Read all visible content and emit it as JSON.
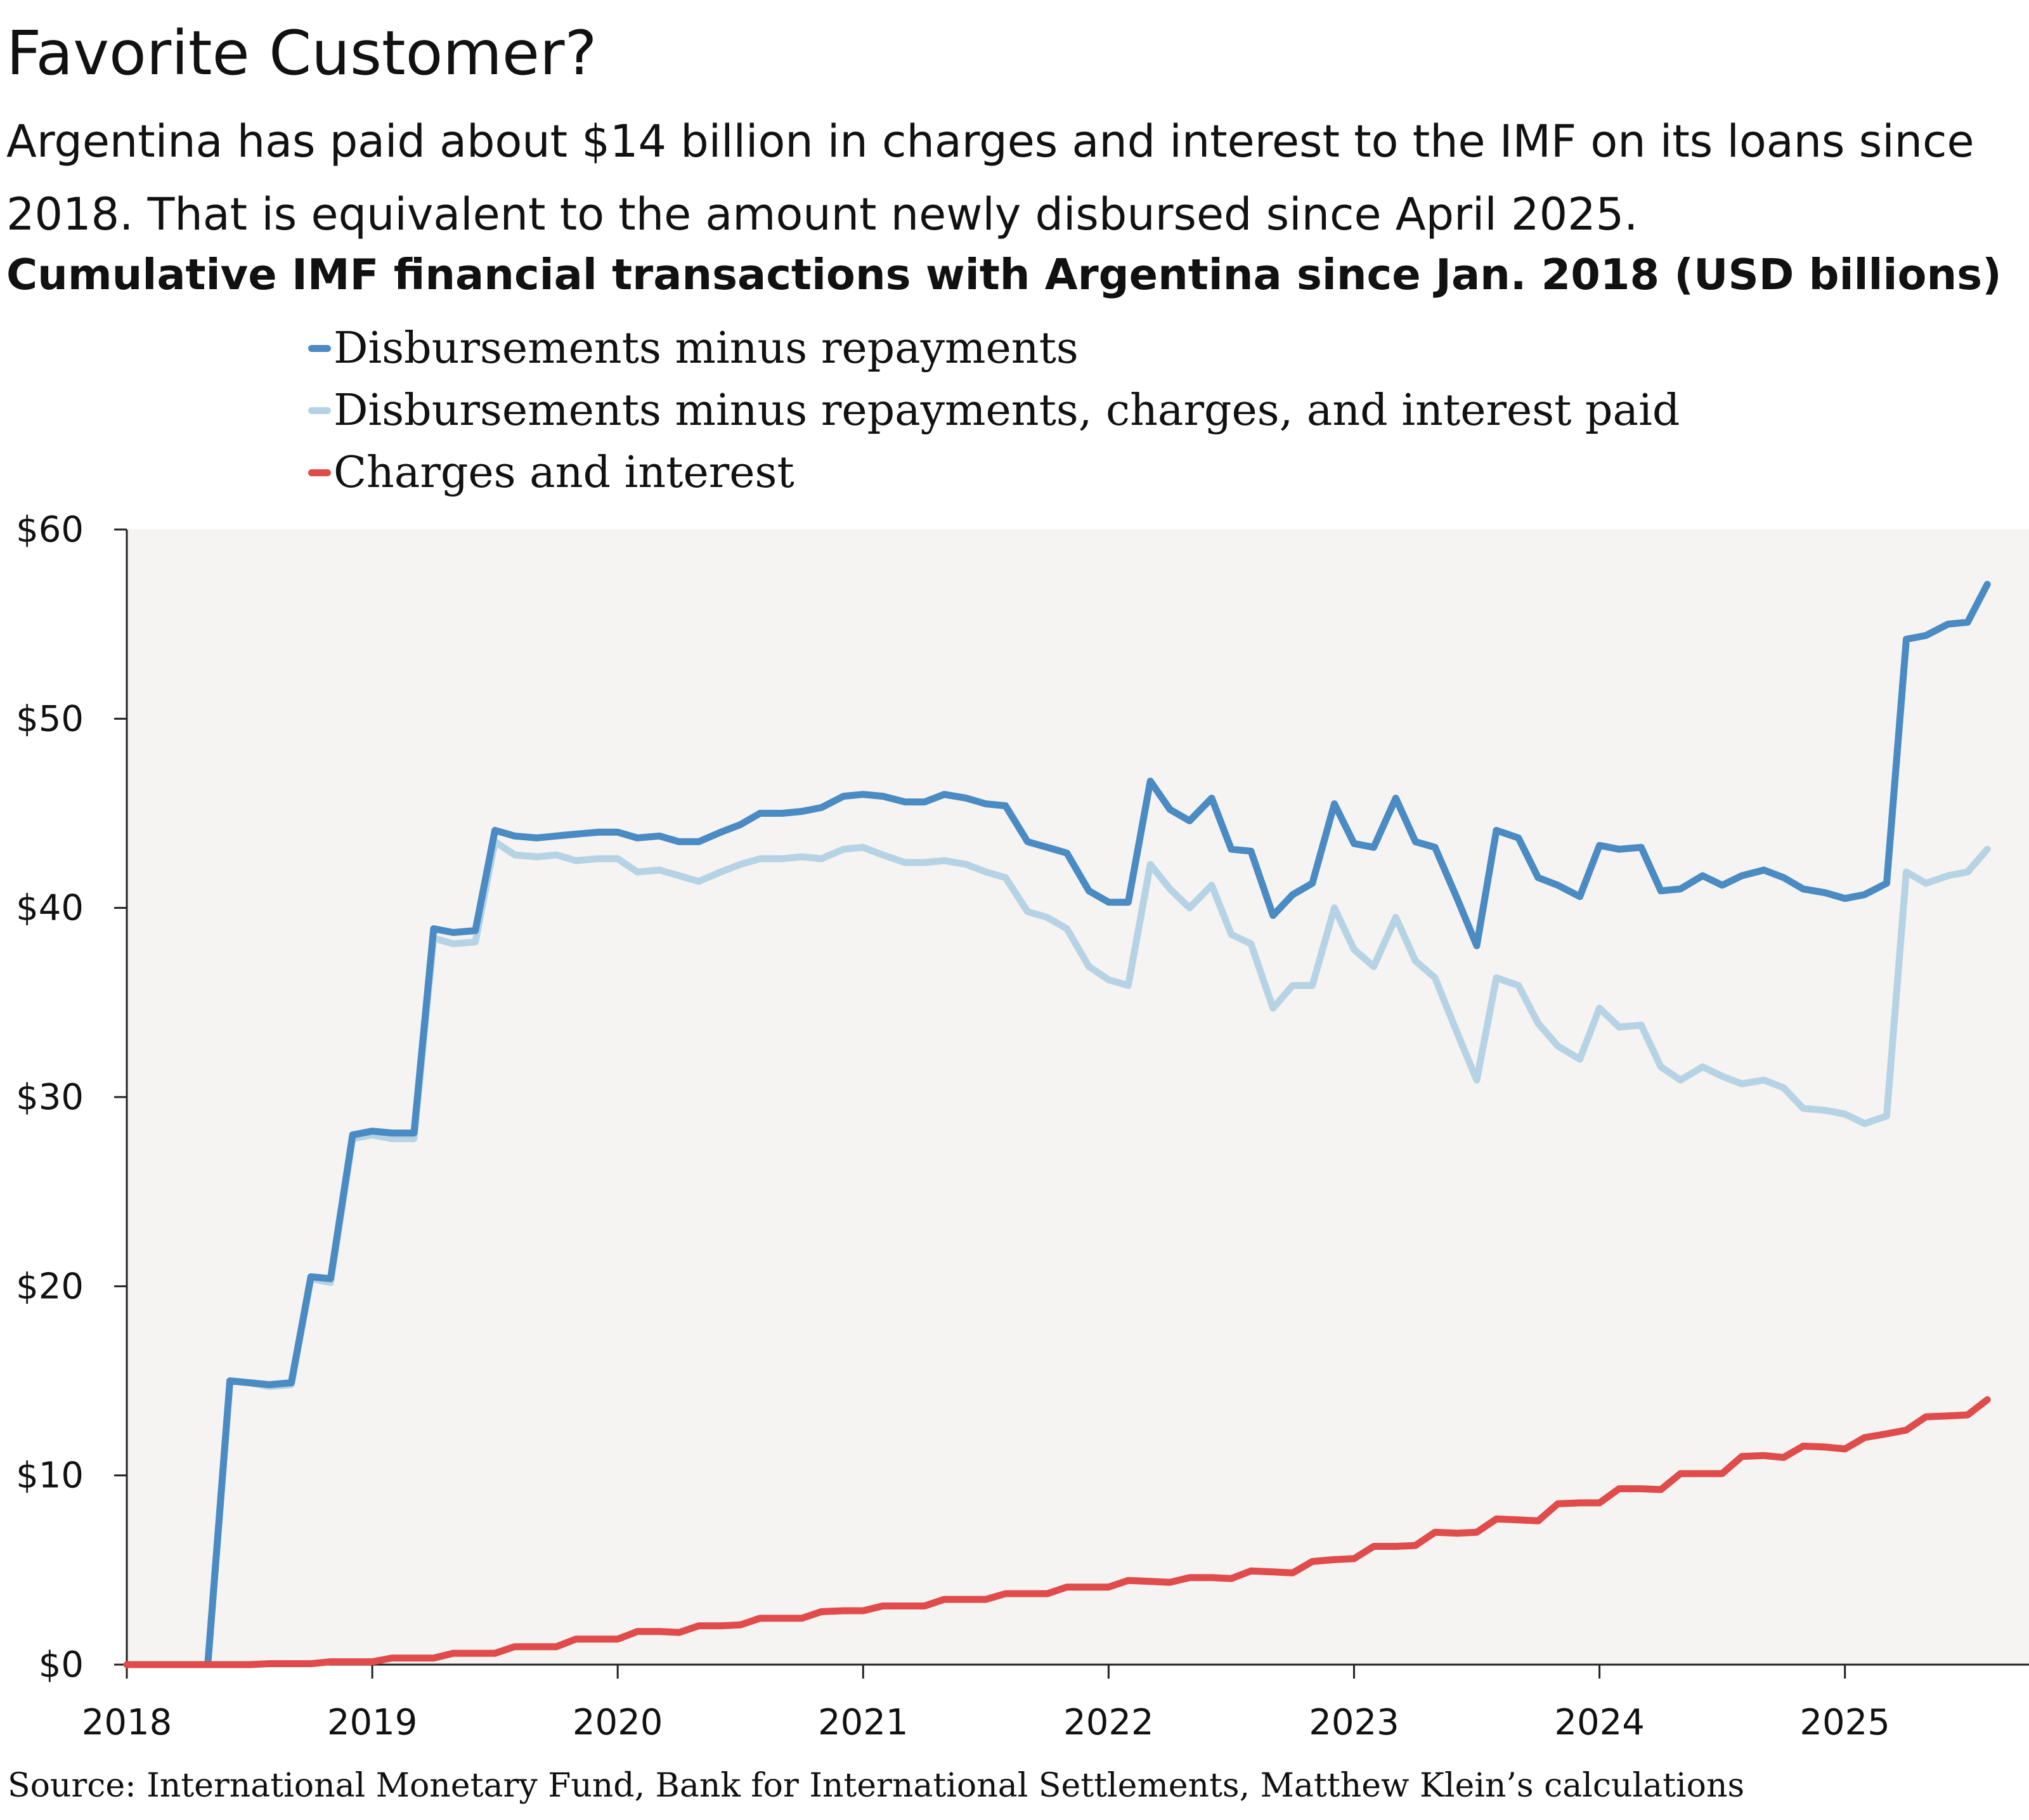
{
  "title": "Favorite Customer?",
  "subtitle": "Argentina has paid about $14 billion in charges and interest to the IMF on its loans since 2018. That is equivalent to the amount newly disbursed since April 2025.",
  "source": "Source: International Monetary Fund, Bank for International Settlements, Matthew Klein’s calculations",
  "chart_data": {
    "type": "line",
    "title": "Cumulative IMF financial transactions with Argentina since Jan. 2018 (USD billions)",
    "xlabel": "",
    "ylabel": "",
    "xlim": [
      2018,
      2025.75
    ],
    "ylim": [
      0,
      60
    ],
    "yticks": [
      0,
      10,
      20,
      30,
      40,
      50,
      60
    ],
    "ytick_labels": [
      "$0",
      "$10",
      "$20",
      "$30",
      "$40",
      "$50",
      "$60"
    ],
    "xticks": [
      2018,
      2019,
      2020,
      2021,
      2022,
      2023,
      2024,
      2025
    ],
    "xtick_labels": [
      "2018",
      "2019",
      "2020",
      "2021",
      "2022",
      "2023",
      "2024",
      "2025"
    ],
    "grid": false,
    "legend_position": "top-left",
    "background": "#f5f4f2",
    "series": [
      {
        "name": "Disbursements minus repayments",
        "color": "#4a8bc4",
        "x": [
          2018.33,
          2018.42,
          2018.5,
          2018.58,
          2018.67,
          2018.75,
          2018.83,
          2018.92,
          2019.0,
          2019.08,
          2019.17,
          2019.25,
          2019.33,
          2019.42,
          2019.5,
          2019.58,
          2019.67,
          2019.75,
          2019.83,
          2019.92,
          2020.0,
          2020.08,
          2020.17,
          2020.25,
          2020.33,
          2020.42,
          2020.5,
          2020.58,
          2020.67,
          2020.75,
          2020.83,
          2020.92,
          2021.0,
          2021.08,
          2021.17,
          2021.25,
          2021.33,
          2021.42,
          2021.5,
          2021.58,
          2021.67,
          2021.75,
          2021.83,
          2021.92,
          2022.0,
          2022.08,
          2022.17,
          2022.25,
          2022.33,
          2022.42,
          2022.5,
          2022.58,
          2022.67,
          2022.75,
          2022.83,
          2022.92,
          2023.0,
          2023.08,
          2023.17,
          2023.25,
          2023.33,
          2023.42,
          2023.5,
          2023.58,
          2023.67,
          2023.75,
          2023.83,
          2023.92,
          2024.0,
          2024.08,
          2024.17,
          2024.25,
          2024.33,
          2024.42,
          2024.5,
          2024.58,
          2024.67,
          2024.75,
          2024.83,
          2024.92,
          2025.0,
          2025.08,
          2025.17,
          2025.25,
          2025.33,
          2025.42,
          2025.5,
          2025.58
        ],
        "values": [
          0,
          15.0,
          14.9,
          14.8,
          14.9,
          20.5,
          20.4,
          28.0,
          28.2,
          28.1,
          28.1,
          38.9,
          38.7,
          38.8,
          44.1,
          43.8,
          43.7,
          43.8,
          43.9,
          44.0,
          44.0,
          43.7,
          43.8,
          43.5,
          43.5,
          44.0,
          44.4,
          45.0,
          45.0,
          45.1,
          45.3,
          45.9,
          46.0,
          45.9,
          45.6,
          45.6,
          46.0,
          45.8,
          45.5,
          45.4,
          43.5,
          43.2,
          42.9,
          40.9,
          40.3,
          40.3,
          46.7,
          45.2,
          44.6,
          45.8,
          43.1,
          43.0,
          39.6,
          40.7,
          41.3,
          45.5,
          43.4,
          43.2,
          45.8,
          43.5,
          43.2,
          40.5,
          38.0,
          44.1,
          43.7,
          41.6,
          41.2,
          40.6,
          43.3,
          43.1,
          43.2,
          40.9,
          41.0,
          41.7,
          41.2,
          41.7,
          42.0,
          41.6,
          41.0,
          40.8,
          40.5,
          40.7,
          41.3,
          54.2,
          54.4,
          55.0,
          55.1,
          57.1
        ]
      },
      {
        "name": "Disbursements minus repayments, charges, and interest paid",
        "color": "#b6d3e5",
        "x": [
          2018.33,
          2018.42,
          2018.5,
          2018.58,
          2018.67,
          2018.75,
          2018.83,
          2018.92,
          2019.0,
          2019.08,
          2019.17,
          2019.25,
          2019.33,
          2019.42,
          2019.5,
          2019.58,
          2019.67,
          2019.75,
          2019.83,
          2019.92,
          2020.0,
          2020.08,
          2020.17,
          2020.25,
          2020.33,
          2020.42,
          2020.5,
          2020.58,
          2020.67,
          2020.75,
          2020.83,
          2020.92,
          2021.0,
          2021.08,
          2021.17,
          2021.25,
          2021.33,
          2021.42,
          2021.5,
          2021.58,
          2021.67,
          2021.75,
          2021.83,
          2021.92,
          2022.0,
          2022.08,
          2022.17,
          2022.25,
          2022.33,
          2022.42,
          2022.5,
          2022.58,
          2022.67,
          2022.75,
          2022.83,
          2022.92,
          2023.0,
          2023.08,
          2023.17,
          2023.25,
          2023.33,
          2023.42,
          2023.5,
          2023.58,
          2023.67,
          2023.75,
          2023.83,
          2023.92,
          2024.0,
          2024.08,
          2024.17,
          2024.25,
          2024.33,
          2024.42,
          2024.5,
          2024.58,
          2024.67,
          2024.75,
          2024.83,
          2024.92,
          2025.0,
          2025.08,
          2025.17,
          2025.25,
          2025.33,
          2025.42,
          2025.5,
          2025.58
        ],
        "values": [
          0,
          15.0,
          14.9,
          14.7,
          14.8,
          20.4,
          20.2,
          27.8,
          28.0,
          27.8,
          27.8,
          38.4,
          38.1,
          38.2,
          43.5,
          42.8,
          42.7,
          42.8,
          42.5,
          42.6,
          42.6,
          41.9,
          42.0,
          41.7,
          41.4,
          41.9,
          42.3,
          42.6,
          42.6,
          42.7,
          42.6,
          43.1,
          43.2,
          42.8,
          42.4,
          42.4,
          42.5,
          42.3,
          41.9,
          41.6,
          39.8,
          39.5,
          38.9,
          36.9,
          36.2,
          35.9,
          42.3,
          41.0,
          40.0,
          41.2,
          38.6,
          38.1,
          34.7,
          35.9,
          35.9,
          40.0,
          37.8,
          36.9,
          39.5,
          37.2,
          36.3,
          33.4,
          30.9,
          36.3,
          35.9,
          33.9,
          32.7,
          32.0,
          34.7,
          33.7,
          33.8,
          31.6,
          30.9,
          31.6,
          31.1,
          30.7,
          30.9,
          30.5,
          29.4,
          29.3,
          29.1,
          28.6,
          29.0,
          41.9,
          41.3,
          41.7,
          41.9,
          43.1
        ]
      },
      {
        "name": "Charges and interest",
        "color": "#e04b4b",
        "x": [
          2018.0,
          2018.08,
          2018.17,
          2018.25,
          2018.33,
          2018.42,
          2018.5,
          2018.58,
          2018.67,
          2018.75,
          2018.83,
          2018.92,
          2019.0,
          2019.08,
          2019.17,
          2019.25,
          2019.33,
          2019.42,
          2019.5,
          2019.58,
          2019.67,
          2019.75,
          2019.83,
          2019.92,
          2020.0,
          2020.08,
          2020.17,
          2020.25,
          2020.33,
          2020.42,
          2020.5,
          2020.58,
          2020.67,
          2020.75,
          2020.83,
          2020.92,
          2021.0,
          2021.08,
          2021.17,
          2021.25,
          2021.33,
          2021.42,
          2021.5,
          2021.58,
          2021.67,
          2021.75,
          2021.83,
          2021.92,
          2022.0,
          2022.08,
          2022.17,
          2022.25,
          2022.33,
          2022.42,
          2022.5,
          2022.58,
          2022.67,
          2022.75,
          2022.83,
          2022.92,
          2023.0,
          2023.08,
          2023.17,
          2023.25,
          2023.33,
          2023.42,
          2023.5,
          2023.58,
          2023.67,
          2023.75,
          2023.83,
          2023.92,
          2024.0,
          2024.08,
          2024.17,
          2024.25,
          2024.33,
          2024.42,
          2024.5,
          2024.58,
          2024.67,
          2024.75,
          2024.83,
          2024.92,
          2025.0,
          2025.08,
          2025.17,
          2025.25,
          2025.33,
          2025.42,
          2025.5,
          2025.58
        ],
        "values": [
          0,
          0,
          0,
          0,
          0,
          0,
          0,
          0.05,
          0.05,
          0.05,
          0.15,
          0.15,
          0.15,
          0.35,
          0.35,
          0.35,
          0.6,
          0.6,
          0.6,
          0.95,
          0.95,
          0.95,
          1.35,
          1.35,
          1.35,
          1.75,
          1.75,
          1.7,
          2.05,
          2.05,
          2.1,
          2.45,
          2.45,
          2.45,
          2.8,
          2.85,
          2.85,
          3.1,
          3.1,
          3.1,
          3.45,
          3.45,
          3.45,
          3.75,
          3.75,
          3.75,
          4.1,
          4.1,
          4.1,
          4.45,
          4.4,
          4.35,
          4.6,
          4.6,
          4.55,
          4.95,
          4.9,
          4.85,
          5.45,
          5.55,
          5.6,
          6.25,
          6.25,
          6.3,
          7.0,
          6.95,
          7.0,
          7.7,
          7.65,
          7.6,
          8.5,
          8.55,
          8.55,
          9.3,
          9.3,
          9.25,
          10.1,
          10.1,
          10.1,
          11.0,
          11.05,
          10.95,
          11.55,
          11.5,
          11.4,
          12.0,
          12.2,
          12.4,
          13.1,
          13.15,
          13.2,
          14.0
        ]
      }
    ]
  }
}
